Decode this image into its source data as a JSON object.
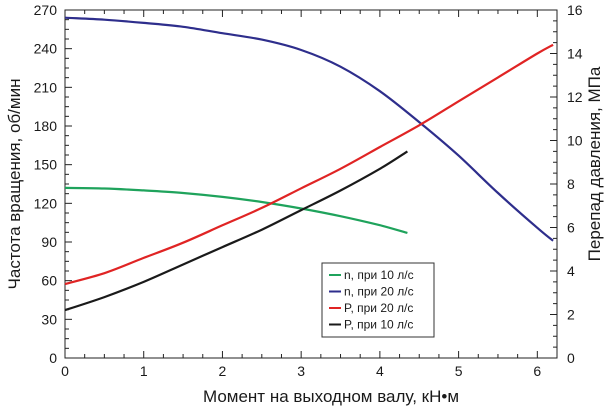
{
  "chart_data": {
    "type": "line",
    "xlabel": "Момент на выходном валу,  кН•м",
    "ylabel_left": "Частота вращения, об/мин",
    "ylabel_right": "Перепад давления, МПа",
    "xlim": [
      0,
      6.25
    ],
    "ylim_left": [
      0,
      270
    ],
    "ylim_right": [
      0,
      16
    ],
    "x_ticks": [
      0,
      1,
      2,
      3,
      4,
      5,
      6
    ],
    "y_ticks_left": [
      0,
      30,
      60,
      90,
      120,
      150,
      180,
      210,
      240,
      270
    ],
    "y_ticks_right": [
      0,
      2,
      4,
      6,
      8,
      10,
      12,
      14,
      16
    ],
    "grid": false,
    "legend_position": "bottom-right",
    "series": [
      {
        "name": "n, при 10 л/с",
        "axis": "left",
        "color": "#1fa35c",
        "x": [
          0,
          0.5,
          1,
          1.5,
          2,
          2.5,
          3,
          3.5,
          4,
          4.35
        ],
        "y": [
          132,
          131.5,
          130,
          128,
          125,
          121,
          116,
          110,
          103,
          97
        ]
      },
      {
        "name": "n, при 20 л/с",
        "axis": "left",
        "color": "#2e2e8c",
        "x": [
          0,
          0.5,
          1,
          1.5,
          2,
          2.5,
          3,
          3.5,
          4,
          4.5,
          5,
          5.5,
          6,
          6.2
        ],
        "y": [
          264,
          262.5,
          260,
          257,
          252,
          247,
          239,
          226,
          207,
          183,
          157,
          128,
          101,
          91
        ]
      },
      {
        "name": "P, при 20 л/с",
        "axis": "right",
        "color": "#e02424",
        "x": [
          0,
          0.5,
          1,
          1.5,
          2,
          2.5,
          3,
          3.5,
          4,
          4.5,
          5,
          5.5,
          6,
          6.2
        ],
        "y": [
          3.4,
          3.9,
          4.6,
          5.3,
          6.1,
          6.9,
          7.8,
          8.7,
          9.7,
          10.7,
          11.8,
          12.9,
          14.0,
          14.4
        ]
      },
      {
        "name": "P, при 10 л/с",
        "axis": "right",
        "color": "#1a1a1a",
        "x": [
          0,
          0.5,
          1,
          1.5,
          2,
          2.5,
          3,
          3.5,
          4,
          4.35
        ],
        "y": [
          2.2,
          2.8,
          3.5,
          4.3,
          5.1,
          5.9,
          6.8,
          7.7,
          8.7,
          9.5
        ]
      }
    ],
    "legend_order": [
      0,
      1,
      2,
      3
    ]
  }
}
